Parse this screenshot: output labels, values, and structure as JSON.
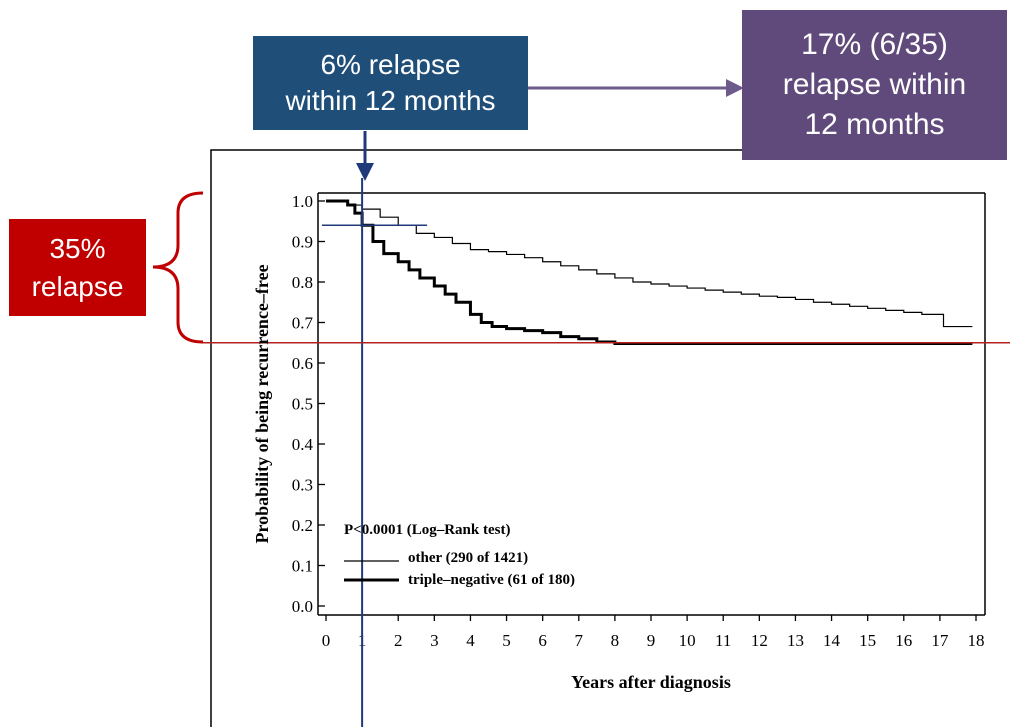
{
  "colors": {
    "blue_box": "#1F4E79",
    "purple_box": "#604A7B",
    "red_box": "#C00000",
    "navy_line": "#1F3A7A",
    "purple_arrow": "#6E5B8C",
    "red_line": "#B22222",
    "curve": "#000000"
  },
  "callouts": {
    "six_pct": {
      "line1": "6% relapse",
      "line2": "within 12 months"
    },
    "seventeen_pct": {
      "line1": "17% (6/35)",
      "line2": "relapse within",
      "line3": "12 months"
    },
    "thirtyfive_pct": {
      "line1": "35%",
      "line2": "relapse"
    }
  },
  "chart_data": {
    "type": "line",
    "subtype": "kaplan-meier step curve",
    "xlabel": "Years after diagnosis",
    "ylabel": "Probability of being recurrence–free",
    "xlim": [
      0,
      18
    ],
    "ylim": [
      0.0,
      1.0
    ],
    "xticks": [
      "0",
      "1",
      "2",
      "3",
      "4",
      "5",
      "6",
      "7",
      "8",
      "9",
      "10",
      "11",
      "12",
      "13",
      "14",
      "15",
      "16",
      "17",
      "18"
    ],
    "yticks": [
      "0.0",
      "0.1",
      "0.2",
      "0.3",
      "0.4",
      "0.5",
      "0.6",
      "0.7",
      "0.8",
      "0.9",
      "1.0"
    ],
    "grid": false,
    "annotation": "P<0.0001 (Log–Rank test)",
    "legend_position": "lower-left",
    "series": [
      {
        "name": "other (290 of 1421)",
        "style": "thin",
        "x": [
          0,
          0.3,
          0.6,
          1,
          1.5,
          2,
          2.5,
          3,
          3.5,
          4,
          4.5,
          5,
          5.5,
          6,
          6.5,
          7,
          7.5,
          8,
          8.5,
          9,
          9.5,
          10,
          10.5,
          11,
          11.5,
          12,
          12.5,
          13,
          13.5,
          14,
          14.5,
          15,
          15.5,
          16,
          16.5,
          17,
          17.1,
          17.9
        ],
        "y": [
          1.0,
          1.0,
          0.99,
          0.98,
          0.96,
          0.94,
          0.92,
          0.91,
          0.895,
          0.88,
          0.875,
          0.868,
          0.86,
          0.85,
          0.84,
          0.83,
          0.82,
          0.81,
          0.8,
          0.795,
          0.79,
          0.785,
          0.78,
          0.775,
          0.77,
          0.765,
          0.762,
          0.757,
          0.75,
          0.745,
          0.74,
          0.735,
          0.73,
          0.725,
          0.72,
          0.72,
          0.69,
          0.69
        ]
      },
      {
        "name": "triple–negative (61 of 180)",
        "style": "thick",
        "x": [
          0,
          0.3,
          0.6,
          0.8,
          1,
          1.3,
          1.6,
          2,
          2.3,
          2.6,
          3,
          3.3,
          3.6,
          4,
          4.3,
          4.6,
          5,
          5.5,
          6,
          6.5,
          7,
          7.5,
          8,
          10,
          12,
          14,
          16,
          17.9
        ],
        "y": [
          1.0,
          1.0,
          0.99,
          0.97,
          0.94,
          0.9,
          0.87,
          0.85,
          0.83,
          0.81,
          0.79,
          0.77,
          0.75,
          0.72,
          0.7,
          0.69,
          0.685,
          0.68,
          0.675,
          0.665,
          0.66,
          0.652,
          0.648,
          0.648,
          0.648,
          0.648,
          0.648,
          0.648
        ]
      }
    ],
    "reference_lines": {
      "vertical_x": 1,
      "horizontal_short_y": 0.94,
      "horizontal_long_y": 0.65
    }
  }
}
